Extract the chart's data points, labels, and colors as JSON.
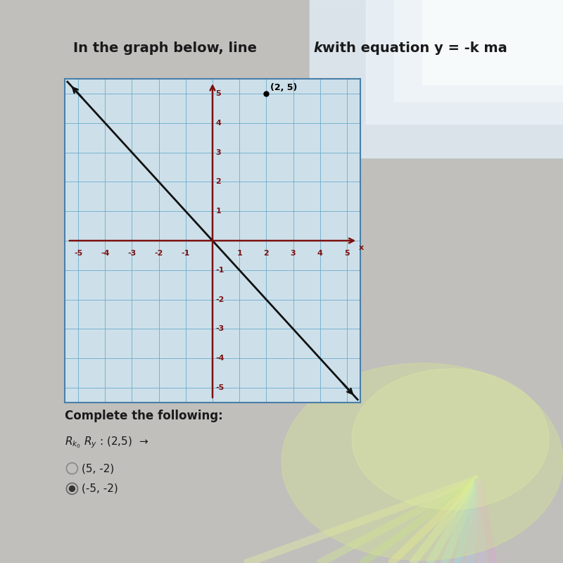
{
  "title": "In the graph below, line k with equation y = -k ma",
  "title_fontsize": 14,
  "title_color": "#1a1a1a",
  "background_color": "#c8c8c8",
  "graph_bg_color": "#cde0ea",
  "graph_border_color": "#4a7fa8",
  "grid_color": "#6aaacb",
  "axis_color": "#7b1010",
  "axis_lw": 1.8,
  "line_color": "#111111",
  "line_lw": 2.0,
  "xlim": [
    -5.5,
    5.5
  ],
  "ylim": [
    -5.5,
    5.5
  ],
  "xticks": [
    -5,
    -4,
    -3,
    -2,
    -1,
    1,
    2,
    3,
    4,
    5
  ],
  "yticks": [
    -5,
    -4,
    -3,
    -2,
    -1,
    1,
    2,
    3,
    4,
    5
  ],
  "tick_color": "#7b1010",
  "tick_fontsize": 8,
  "point_x": 2,
  "point_y": 5,
  "point_label": "(2, 5)",
  "complete_text": "Complete the following:",
  "option1": "(5, -2)",
  "option2": "(-5, -2)",
  "option1_selected": false,
  "option2_selected": true
}
